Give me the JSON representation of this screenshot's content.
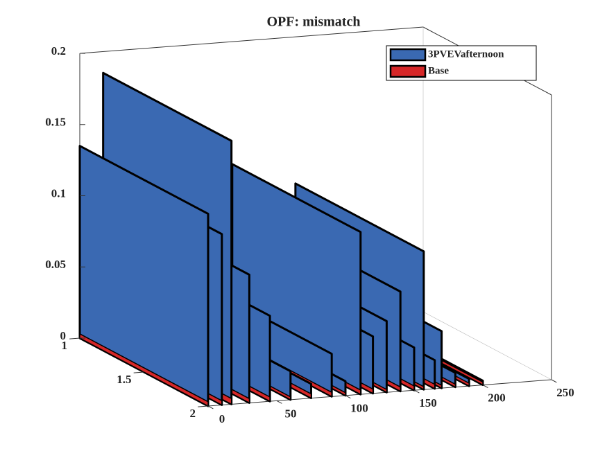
{
  "chart_data": {
    "type": "ribbon3d",
    "title": "OPF: mismatch",
    "x": [
      0,
      10,
      17,
      30,
      45,
      60,
      75,
      90,
      100,
      111,
      120,
      130,
      140,
      150,
      157,
      165,
      170,
      180,
      190,
      200
    ],
    "series": [
      {
        "name": "3PVEVafternoon",
        "color": "#3a69b2",
        "values": [
          0.135,
          0.12,
          0.185,
          0.09,
          0.06,
          0.02,
          0.01,
          0.03,
          0.01,
          0.114,
          0.04,
          0.05,
          0.07,
          0.03,
          0.097,
          0.02,
          0.04,
          0.01,
          0.005,
          0.003
        ]
      },
      {
        "name": "Base",
        "color": "#d62728",
        "values": [
          0.003,
          0.003,
          0.004,
          0.003,
          0.003,
          0.002,
          0.003,
          0.003,
          0.002,
          0.003,
          0.003,
          0.002,
          0.003,
          0.003,
          0.002,
          0.003,
          0.002,
          0.002,
          0.002,
          0.002
        ]
      }
    ],
    "xlim": [
      0,
      250
    ],
    "xticks": [
      0,
      50,
      100,
      150,
      200,
      250
    ],
    "ylim": [
      1,
      2
    ],
    "yticks": [
      1,
      1.5,
      2
    ],
    "zlim": [
      0,
      0.2
    ],
    "zticks": [
      0,
      0.05,
      0.1,
      0.15,
      0.2
    ],
    "legend": "northeast"
  }
}
